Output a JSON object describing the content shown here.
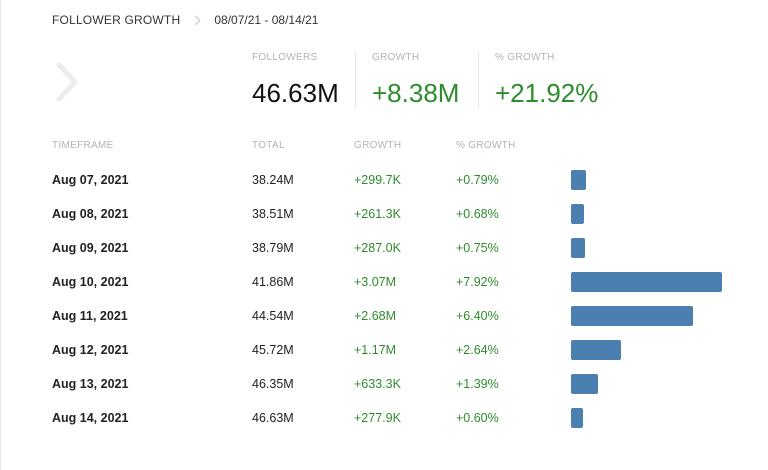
{
  "header": {
    "title": "FOLLOWER GROWTH",
    "range": "08/07/21 - 08/14/21"
  },
  "stats": {
    "followers_label": "FOLLOWERS",
    "followers_value": "46.63M",
    "growth_label": "GROWTH",
    "growth_value": "+8.38M",
    "pct_label": "% GROWTH",
    "pct_value": "+21.92%"
  },
  "table": {
    "columns": [
      "TIMEFRAME",
      "TOTAL",
      "GROWTH",
      "% GROWTH"
    ],
    "rows": [
      {
        "date": "Aug 07, 2021",
        "total": "38.24M",
        "growth": "+299.7K",
        "pct": "+0.79%",
        "pct_value": 0.79
      },
      {
        "date": "Aug 08, 2021",
        "total": "38.51M",
        "growth": "+261.3K",
        "pct": "+0.68%",
        "pct_value": 0.68
      },
      {
        "date": "Aug 09, 2021",
        "total": "38.79M",
        "growth": "+287.0K",
        "pct": "+0.75%",
        "pct_value": 0.75
      },
      {
        "date": "Aug 10, 2021",
        "total": "41.86M",
        "growth": "+3.07M",
        "pct": "+7.92%",
        "pct_value": 7.92
      },
      {
        "date": "Aug 11, 2021",
        "total": "44.54M",
        "growth": "+2.68M",
        "pct": "+6.40%",
        "pct_value": 6.4
      },
      {
        "date": "Aug 12, 2021",
        "total": "45.72M",
        "growth": "+1.17M",
        "pct": "+2.64%",
        "pct_value": 2.64
      },
      {
        "date": "Aug 13, 2021",
        "total": "46.35M",
        "growth": "+633.3K",
        "pct": "+1.39%",
        "pct_value": 1.39
      },
      {
        "date": "Aug 14, 2021",
        "total": "46.63M",
        "growth": "+277.9K",
        "pct": "+0.60%",
        "pct_value": 0.6
      }
    ]
  },
  "colors": {
    "growth_green": "#2e8b2e",
    "bar_blue": "#4a7fb0"
  },
  "icons": {
    "nav": "chevron-right-icon",
    "separator": "chevron-right-icon"
  }
}
